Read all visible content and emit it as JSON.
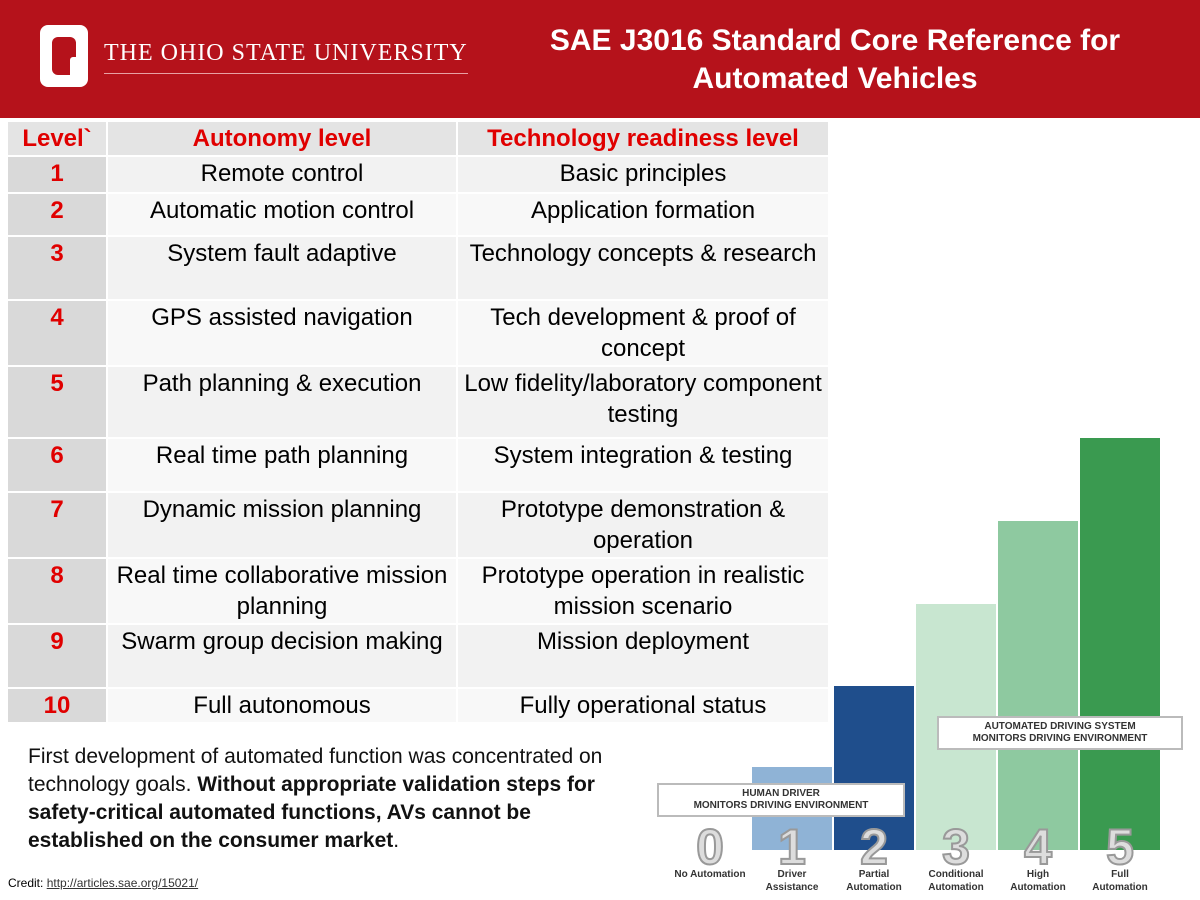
{
  "header": {
    "logo_text": "THE OHIO STATE UNIVERSITY",
    "title": "SAE J3016 Standard Core Reference for Automated Vehicles"
  },
  "table": {
    "columns": [
      "Level`",
      "Autonomy level",
      "Technology readiness level"
    ],
    "rows": [
      [
        1,
        "Remote control",
        "Basic principles"
      ],
      [
        2,
        "Automatic motion control",
        "Application formation"
      ],
      [
        3,
        "System fault adaptive",
        "Technology concepts & research"
      ],
      [
        4,
        "GPS assisted navigation",
        "Tech development & proof of concept"
      ],
      [
        5,
        "Path planning & execution",
        "Low fidelity/laboratory component testing"
      ],
      [
        6,
        "Real time path planning",
        "System integration & testing"
      ],
      [
        7,
        "Dynamic mission planning",
        "Prototype demonstration & operation"
      ],
      [
        8,
        "Real time collaborative mission planning",
        "Prototype operation in realistic mission scenario"
      ],
      [
        9,
        "Swarm group decision making",
        "Mission deployment"
      ],
      [
        10,
        "Full autonomous",
        "Fully operational status"
      ]
    ]
  },
  "paragraph": {
    "text": "First development of automated function was concentrated on technology goals. ",
    "bold": "Without appropriate validation steps for safety-critical automated functions, AVs cannot be established on the consumer market",
    "end": "."
  },
  "credit": {
    "label": "Credit:",
    "link": "http://articles.sae.org/15021/"
  },
  "sae_graphic": {
    "human_label": [
      "HUMAN DRIVER",
      "MONITORS DRIVING ENVIRONMENT"
    ],
    "system_label": [
      "AUTOMATED DRIVING SYSTEM",
      "MONITORS DRIVING ENVIRONMENT"
    ],
    "levels": [
      {
        "number": 0,
        "name": [
          "No Automation"
        ]
      },
      {
        "number": 1,
        "name": [
          "Driver",
          "Assistance"
        ]
      },
      {
        "number": 2,
        "name": [
          "Partial",
          "Automation"
        ]
      },
      {
        "number": 3,
        "name": [
          "Conditional",
          "Automation"
        ]
      },
      {
        "number": 4,
        "name": [
          "High",
          "Automation"
        ]
      },
      {
        "number": 5,
        "name": [
          "Full",
          "Automation"
        ]
      }
    ]
  }
}
